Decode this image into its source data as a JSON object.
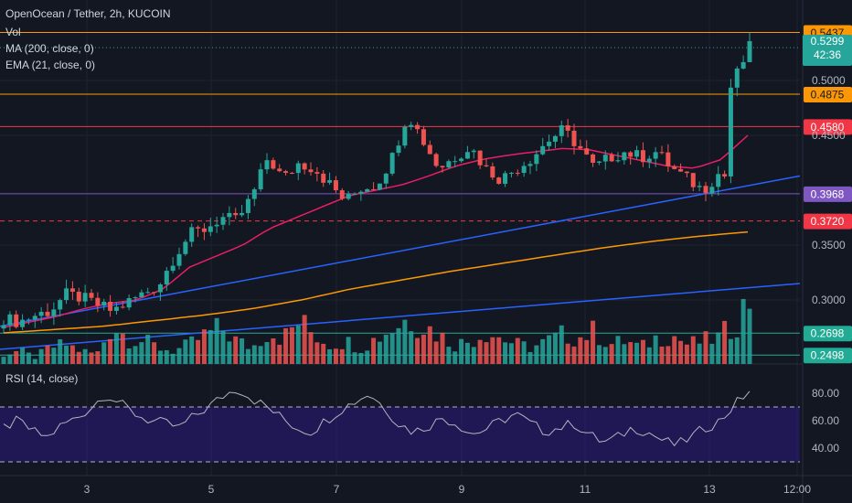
{
  "header": {
    "title": "OpenOcean / Tether, 2h, KUCOIN",
    "vol_label": "Vol",
    "ma_label": "MA (200, close, 0)",
    "ema_label": "EMA (21, close, 0)",
    "rsi_label": "RSI (14, close)",
    "countdown": "42:36"
  },
  "colors": {
    "background": "#131722",
    "up": "#26a69a",
    "down": "#ef5350",
    "ema": "#e91e63",
    "ma": "#ff9800",
    "trend": "#2962ff",
    "support_purple": "#7e57c2",
    "horizontal_orange": "#ff9800",
    "horizontal_red": "#f23645",
    "volume_line": "#22ab94",
    "rsi_band": "#311b92",
    "rsi_line": "#b2b5be"
  },
  "chart_data": [
    {
      "type": "candlestick",
      "title": "OpenOcean / Tether, 2h, KUCOIN",
      "x_ticks": [
        "3",
        "5",
        "7",
        "9",
        "11",
        "13",
        "12:00"
      ],
      "y_ticks": [
        0.3,
        0.35,
        0.45,
        0.5
      ],
      "ylim": [
        0.24,
        0.565
      ],
      "last_price": 0.5299,
      "horizontal_levels": [
        {
          "price": 0.5437,
          "label": "0.5437",
          "color": "#ff9800"
        },
        {
          "price": 0.4875,
          "label": "0.4875",
          "color": "#ff9800"
        },
        {
          "price": 0.458,
          "label": "0.4580",
          "color": "#f23645"
        },
        {
          "price": 0.3968,
          "label": "0.3968",
          "color": "#7e57c2"
        },
        {
          "price": 0.372,
          "label": "0.3720",
          "color": "#f23645",
          "dashed": true
        },
        {
          "price": 0.2698,
          "label": "0.2698",
          "color": "#22ab94"
        },
        {
          "price": 0.2498,
          "label": "0.2498",
          "color": "#22ab94"
        }
      ],
      "price_path": [
        0.283,
        0.28,
        0.286,
        0.29,
        0.305,
        0.302,
        0.296,
        0.29,
        0.298,
        0.306,
        0.314,
        0.34,
        0.36,
        0.365,
        0.375,
        0.372,
        0.395,
        0.43,
        0.41,
        0.425,
        0.42,
        0.405,
        0.39,
        0.402,
        0.405,
        0.43,
        0.47,
        0.445,
        0.42,
        0.43,
        0.44,
        0.42,
        0.41,
        0.42,
        0.43,
        0.445,
        0.455,
        0.44,
        0.42,
        0.43,
        0.435,
        0.43,
        0.435,
        0.42,
        0.41,
        0.4,
        0.415,
        0.41,
        0.5299
      ],
      "ema21_path": [
        0.275,
        0.28,
        0.285,
        0.292,
        0.297,
        0.3,
        0.31,
        0.33,
        0.34,
        0.35,
        0.365,
        0.375,
        0.385,
        0.395,
        0.4,
        0.405,
        0.413,
        0.422,
        0.428,
        0.432,
        0.435,
        0.438,
        0.437,
        0.432,
        0.427,
        0.422,
        0.42,
        0.428,
        0.45
      ],
      "ma200_path": [
        0.27,
        0.273,
        0.276,
        0.281,
        0.286,
        0.292,
        0.3,
        0.31,
        0.318,
        0.326,
        0.333,
        0.34,
        0.347,
        0.353,
        0.358,
        0.362
      ],
      "trend_lines": [
        {
          "from": [
            0.0,
            0.276
          ],
          "to": [
            1.0,
            0.413
          ]
        },
        {
          "from": [
            0.0,
            0.255
          ],
          "to": [
            1.0,
            0.315
          ]
        }
      ]
    },
    {
      "type": "bar",
      "title": "Vol",
      "note": "volume bars, relative heights",
      "values": [
        3,
        4,
        2,
        5,
        6,
        4,
        3,
        12,
        8,
        7,
        5,
        4,
        6,
        9,
        11,
        7,
        5,
        10,
        8,
        13,
        9,
        6,
        7,
        5,
        8,
        11,
        14,
        12,
        9,
        6,
        7,
        10,
        8,
        6,
        5,
        7,
        9,
        8,
        10,
        6,
        7,
        5,
        8,
        9,
        6,
        7,
        8,
        12,
        20
      ]
    },
    {
      "type": "line",
      "title": "RSI (14, close)",
      "y_ticks": [
        40,
        60,
        80
      ],
      "ylim": [
        20,
        100
      ],
      "upper_band": 70,
      "lower_band": 30,
      "values": [
        55,
        60,
        52,
        48,
        57,
        62,
        70,
        80,
        72,
        65,
        60,
        58,
        55,
        63,
        70,
        78,
        84,
        76,
        70,
        62,
        55,
        52,
        60,
        68,
        74,
        80,
        70,
        58,
        52,
        56,
        62,
        58,
        50,
        54,
        60,
        65,
        58,
        52,
        55,
        58,
        50,
        44,
        48,
        55,
        52,
        46,
        42,
        48,
        55,
        60,
        72,
        82
      ]
    }
  ]
}
